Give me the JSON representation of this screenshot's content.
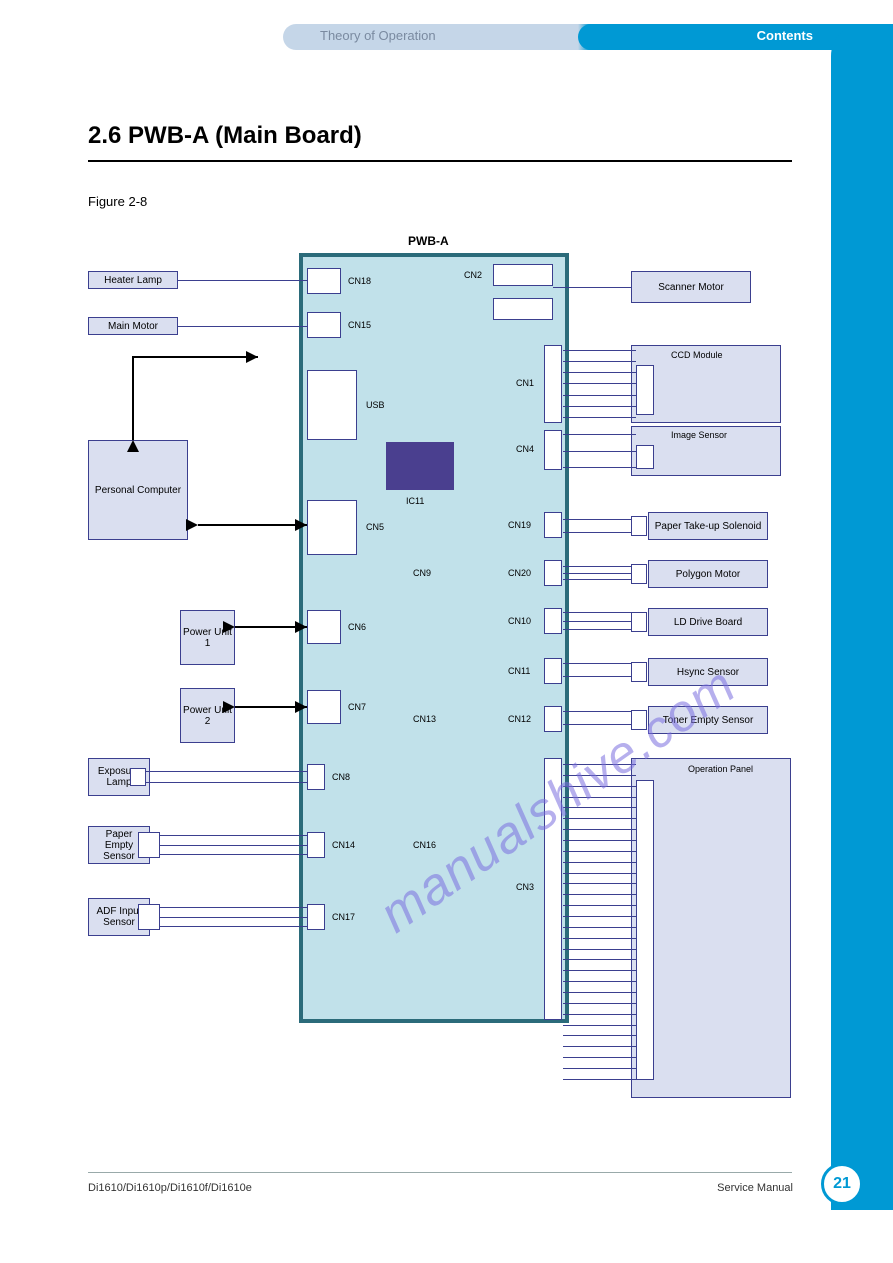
{
  "header": {
    "left": "Theory of Operation",
    "right": "Contents"
  },
  "section": {
    "title": "2.6 PWB-A (Main Board)",
    "figure": "Figure 2-8"
  },
  "footer": {
    "left": "Di1610/Di1610p/Di1610f/Di1610e",
    "right": "Service Manual",
    "page": "21"
  },
  "watermark": "manualshive.com",
  "colors": {
    "board_fill": "#c1e1ea",
    "board_border": "#2b6b7a",
    "box_fill": "#dadff0",
    "box_border": "#3b3f8f",
    "chip": "#4a3f8f",
    "accent": "#0099d4"
  },
  "board": {
    "label": "PWB-A"
  },
  "left_items": {
    "heater": "Heater Lamp",
    "motor": "Main Motor",
    "pc": "Personal\nComputer",
    "pu1": "Power\nUnit 1",
    "pu2": "Power\nUnit 2",
    "exposure": "Exposure\nLamp",
    "paper_empty": "Paper Empty\nSensor",
    "adf_input": "ADF Input\nSensor"
  },
  "right_items": {
    "scan_motor": "Scanner Motor",
    "ccd_module": "CCD Module",
    "image_sensor": "Image Sensor",
    "paper_take": "Paper Take-up\nSolenoid",
    "polygon": "Polygon Motor",
    "ld_drive": "LD Drive\nBoard",
    "hsync": "Hsync Sensor",
    "toner_empty": "Toner Empty\nSensor",
    "op_panel": "Operation Panel"
  },
  "ports": {
    "cn18": "CN18",
    "cn15": "CN15",
    "usb": "USB",
    "cn5": "CN5",
    "cn6": "CN6",
    "cn7": "CN7",
    "cn8": "CN8",
    "cn14": "CN14",
    "cn16": "CN16",
    "cn17": "CN17",
    "cn2": "CN2",
    "cn1": "CN1",
    "cn4": "CN4",
    "cn19": "CN19",
    "cn20": "CN20",
    "cn9": "CN9",
    "cn10": "CN10",
    "cn11": "CN11",
    "cn12": "CN12",
    "cn13": "CN13",
    "cn3": "CN3"
  },
  "chip_label": "IC11"
}
